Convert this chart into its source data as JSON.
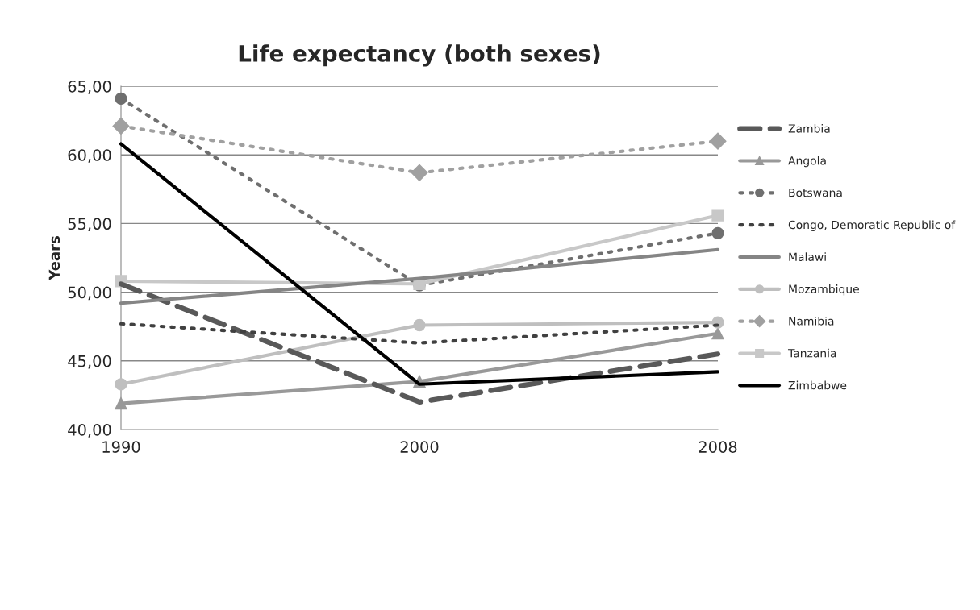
{
  "chart_data": {
    "type": "line",
    "title": "Life expectancy (both sexes)",
    "ylabel": "Years",
    "categories": [
      "1990",
      "2000",
      "2008"
    ],
    "ylim": [
      40,
      65
    ],
    "yticks": [
      {
        "value": 40,
        "label": "40,00"
      },
      {
        "value": 45,
        "label": "45,00"
      },
      {
        "value": 50,
        "label": "50,00"
      },
      {
        "value": 55,
        "label": "55,00"
      },
      {
        "value": 60,
        "label": "60,00"
      },
      {
        "value": 65,
        "label": "65,00"
      }
    ],
    "grid": "y",
    "legend": "right",
    "series": [
      {
        "name": "Zambia",
        "color": "#595959",
        "values": [
          50.6,
          42.0,
          45.5
        ],
        "line_style": "dashed",
        "marker": "none"
      },
      {
        "name": "Angola",
        "color": "#999999",
        "values": [
          41.9,
          43.5,
          47.0
        ],
        "line_style": "solid",
        "marker": "triangle"
      },
      {
        "name": "Botswana",
        "color": "#6f6f6f",
        "values": [
          64.1,
          50.5,
          54.3
        ],
        "line_style": "dotted",
        "marker": "circle"
      },
      {
        "name": "Congo, Demoratic Republic of",
        "color": "#404040",
        "values": [
          47.7,
          46.3,
          47.6
        ],
        "line_style": "dotted",
        "marker": "none"
      },
      {
        "name": "Malawi",
        "color": "#858585",
        "values": [
          49.2,
          51.0,
          53.1
        ],
        "line_style": "solid",
        "marker": "none"
      },
      {
        "name": "Mozambique",
        "color": "#bfbfbf",
        "values": [
          43.3,
          47.6,
          47.8
        ],
        "line_style": "solid",
        "marker": "circle"
      },
      {
        "name": "Namibia",
        "color": "#a0a0a0",
        "values": [
          62.1,
          58.7,
          61.0
        ],
        "line_style": "dotted",
        "marker": "diamond"
      },
      {
        "name": "Tanzania",
        "color": "#c8c8c8",
        "values": [
          50.8,
          50.6,
          55.6
        ],
        "line_style": "solid",
        "marker": "square"
      },
      {
        "name": "Zimbabwe",
        "color": "#000000",
        "values": [
          60.8,
          43.3,
          44.2
        ],
        "line_style": "solid",
        "marker": "none"
      }
    ]
  }
}
